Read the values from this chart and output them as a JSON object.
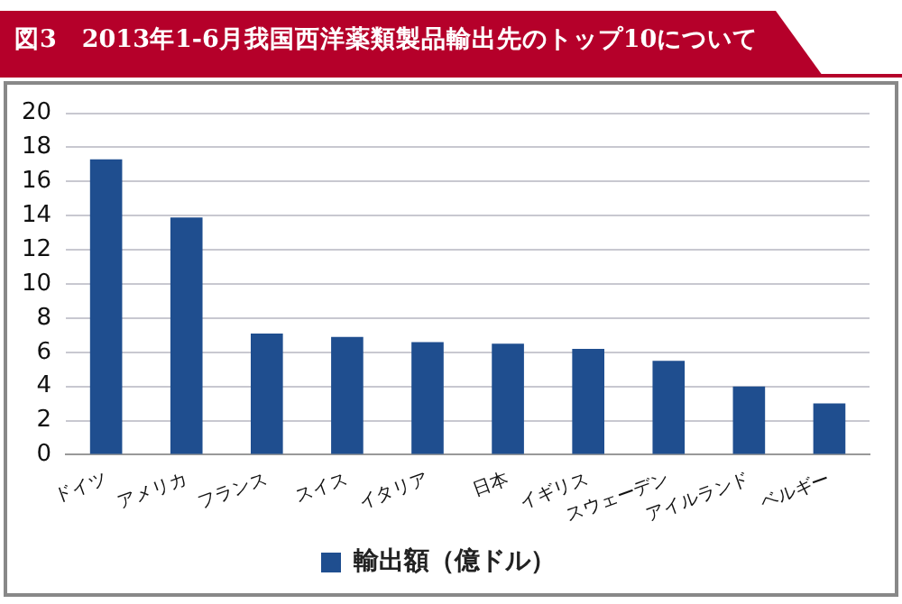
{
  "chart_data": {
    "type": "bar",
    "title": "図3　2013年1-6月我国西洋薬類製品輸出先のトップ10について",
    "categories": [
      "ドイツ",
      "アメリカ",
      "フランス",
      "スイス",
      "イタリア",
      "日本",
      "イギリス",
      "スウェーデン",
      "アイルランド",
      "ベルギー"
    ],
    "series": [
      {
        "name": "輸出額（億ドル）",
        "color": "#1f4e8f",
        "values": [
          17.3,
          13.9,
          7.1,
          6.9,
          6.6,
          6.5,
          6.2,
          5.5,
          4.0,
          3.0
        ]
      }
    ],
    "ylim": [
      0,
      20
    ],
    "yticks": [
      0,
      2,
      4,
      6,
      8,
      10,
      12,
      14,
      16,
      18,
      20
    ],
    "grid": "y",
    "legend": "bottom"
  }
}
